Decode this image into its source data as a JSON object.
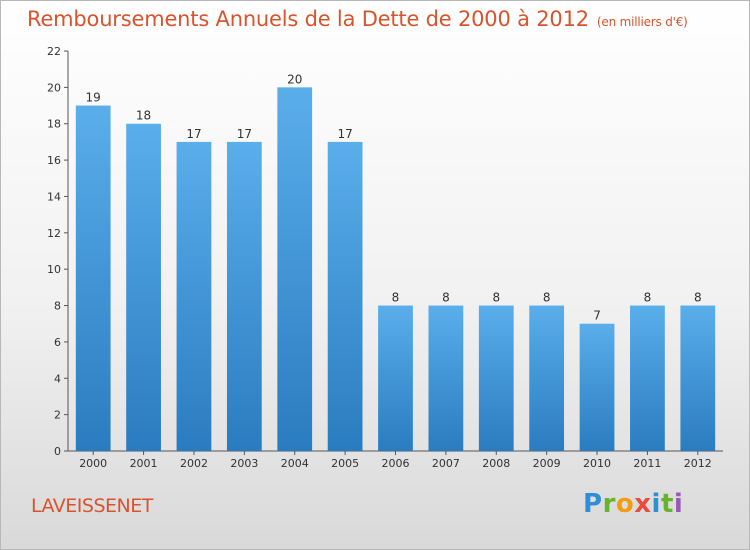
{
  "header": {
    "title": "Remboursements Annuels de la Dette de 2000 à 2012",
    "unit": "(en milliers d'€)"
  },
  "commune": "LAVEISSENET",
  "logo": {
    "text": "Proxiti",
    "letters": [
      "P",
      "r",
      "o",
      "x",
      "i",
      "t",
      "i"
    ]
  },
  "colors": {
    "bar_top": "#5aaeea",
    "bar_bottom": "#2a7cc0",
    "title": "#d9542c"
  },
  "chart_data": {
    "type": "bar",
    "title": "Remboursements Annuels de la Dette de 2000 à 2012",
    "xlabel": "",
    "ylabel": "",
    "categories": [
      "2000",
      "2001",
      "2002",
      "2003",
      "2004",
      "2005",
      "2006",
      "2007",
      "2008",
      "2009",
      "2010",
      "2011",
      "2012"
    ],
    "values": [
      19,
      18,
      17,
      17,
      20,
      17,
      8,
      8,
      8,
      8,
      7,
      8,
      8
    ],
    "data_labels": [
      "19",
      "18",
      "17",
      "17",
      "20",
      "17",
      "8",
      "8",
      "8",
      "8",
      "7",
      "8",
      "8"
    ],
    "ylim": [
      0,
      22
    ],
    "yticks": [
      0,
      2,
      4,
      6,
      8,
      10,
      12,
      14,
      16,
      18,
      20,
      22
    ],
    "grid": false,
    "legend": "none"
  }
}
